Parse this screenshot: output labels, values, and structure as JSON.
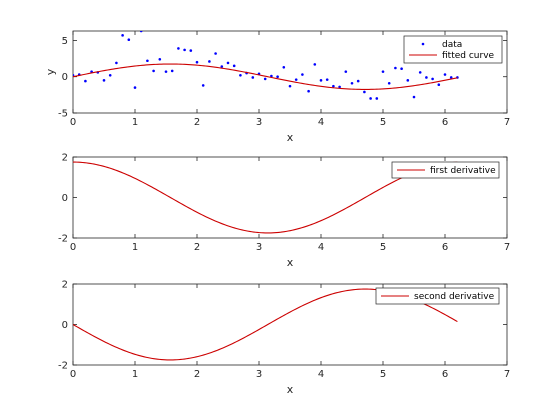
{
  "chart_data": [
    {
      "type": "scatter+line",
      "xlabel": "x",
      "ylabel": "y",
      "xlim": [
        0,
        7
      ],
      "ylim": [
        -5,
        6.3
      ],
      "xticks": [
        0,
        1,
        2,
        3,
        4,
        5,
        6,
        7
      ],
      "yticks": [
        -5,
        0,
        5
      ],
      "grid": false,
      "legend_position": "top-right",
      "series": [
        {
          "name": "data",
          "kind": "scatter",
          "color": "#0000ff",
          "x": [
            0.0,
            0.1,
            0.2,
            0.3,
            0.4,
            0.5,
            0.6,
            0.7,
            0.8,
            0.9,
            1.0,
            1.1,
            1.2,
            1.3,
            1.4,
            1.5,
            1.6,
            1.7,
            1.8,
            1.9,
            2.0,
            2.1,
            2.2,
            2.3,
            2.4,
            2.5,
            2.6,
            2.7,
            2.8,
            2.9,
            3.0,
            3.1,
            3.2,
            3.3,
            3.4,
            3.5,
            3.6,
            3.7,
            3.8,
            3.9,
            4.0,
            4.1,
            4.2,
            4.3,
            4.4,
            4.5,
            4.6,
            4.7,
            4.8,
            4.9,
            5.0,
            5.1,
            5.2,
            5.3,
            5.4,
            5.5,
            5.6,
            5.7,
            5.8,
            5.9,
            6.0,
            6.1,
            6.2
          ],
          "y": [
            0.2,
            0.3,
            -0.6,
            0.7,
            0.6,
            -0.5,
            0.2,
            1.9,
            5.7,
            5.1,
            -1.5,
            6.3,
            2.2,
            0.8,
            2.4,
            0.7,
            0.8,
            3.9,
            3.7,
            3.6,
            2.0,
            -1.2,
            2.1,
            3.2,
            1.4,
            1.9,
            1.5,
            0.2,
            0.5,
            -0.1,
            0.4,
            -0.3,
            0.1,
            0.0,
            1.3,
            -1.3,
            -0.4,
            0.3,
            -2.0,
            1.7,
            -0.5,
            -0.4,
            -1.3,
            -1.4,
            0.7,
            -0.9,
            -0.6,
            -2.1,
            -3.0,
            -3.0,
            0.7,
            -0.9,
            1.2,
            1.1,
            -0.5,
            -2.8,
            0.6,
            -0.1,
            -0.3,
            -1.1,
            0.3,
            -0.1,
            -0.1
          ]
        },
        {
          "name": "fitted curve",
          "kind": "line",
          "color": "#cc0000",
          "function": "sin",
          "amplitude": 1.75,
          "x_range": [
            0,
            6.2
          ]
        }
      ]
    },
    {
      "type": "line",
      "xlabel": "x",
      "xlim": [
        0,
        7
      ],
      "ylim": [
        -2,
        2
      ],
      "xticks": [
        0,
        1,
        2,
        3,
        4,
        5,
        6,
        7
      ],
      "yticks": [
        -2,
        0,
        2
      ],
      "grid": false,
      "legend_position": "top-right",
      "series": [
        {
          "name": "first derivative",
          "kind": "line",
          "color": "#cc0000",
          "function": "cos",
          "amplitude": 1.75,
          "x_range": [
            0,
            6.2
          ]
        }
      ]
    },
    {
      "type": "line",
      "xlabel": "x",
      "xlim": [
        0,
        7
      ],
      "ylim": [
        -2,
        2
      ],
      "xticks": [
        0,
        1,
        2,
        3,
        4,
        5,
        6,
        7
      ],
      "yticks": [
        -2,
        0,
        2
      ],
      "grid": false,
      "legend_position": "top-right",
      "series": [
        {
          "name": "second derivative",
          "kind": "line",
          "color": "#cc0000",
          "function": "-sin",
          "amplitude": 1.75,
          "x_range": [
            0,
            6.2
          ]
        }
      ]
    }
  ]
}
